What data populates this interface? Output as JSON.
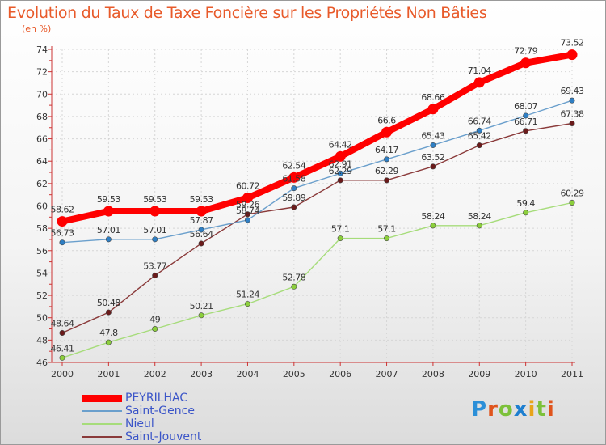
{
  "title": "Evolution du Taux de Taxe Foncière sur les Propriétés Non Bâties",
  "subtitle": "(en %)",
  "brand": {
    "text": "Proxiti",
    "letter_colors": [
      "#2b8fd8",
      "#e0541c",
      "#7cc13a",
      "#1e7fd0",
      "#e8a41a",
      "#7cc13a",
      "#e0541c"
    ]
  },
  "chart_data": {
    "type": "line",
    "title": "Evolution du Taux de Taxe Foncière sur les Propriétés Non Bâties",
    "ylabel": "(en %)",
    "xlabel": "",
    "x": [
      "2000",
      "2001",
      "2002",
      "2003",
      "2004",
      "2005",
      "2006",
      "2007",
      "2008",
      "2009",
      "2010",
      "2011"
    ],
    "ylim": [
      46,
      74
    ],
    "yticks": [
      "46",
      "48",
      "50",
      "52",
      "54",
      "56",
      "58",
      "60",
      "62",
      "64",
      "66",
      "68",
      "70",
      "72",
      "74"
    ],
    "grid": true,
    "legend_position": "bottom-left",
    "series": [
      {
        "name": "PEYRILHAC",
        "color": "#ff0000",
        "values": [
          58.62,
          59.53,
          59.53,
          59.53,
          60.72,
          62.54,
          64.42,
          66.6,
          68.66,
          71.04,
          72.79,
          73.52
        ],
        "labels": [
          "58.62",
          "59.53",
          "59.53",
          "59.53",
          "60.72",
          "62.54",
          "64.42",
          "66.6",
          "68.66",
          "71.04",
          "72.79",
          "73.52"
        ]
      },
      {
        "name": "Saint-Gence",
        "color": "#6a9fcc",
        "marker": "#2f7fc4",
        "values": [
          56.73,
          57.01,
          57.01,
          57.87,
          58.74,
          61.58,
          62.91,
          64.17,
          65.43,
          66.74,
          68.07,
          69.43
        ],
        "labels": [
          "56.73",
          "57.01",
          "57.01",
          "57.87",
          "58.74",
          "61.58",
          "62.91",
          "64.17",
          "65.43",
          "66.74",
          "68.07",
          "69.43"
        ]
      },
      {
        "name": "Nieul",
        "color": "#a6dc7a",
        "marker": "#8ccf3c",
        "values": [
          46.41,
          47.8,
          49,
          50.21,
          51.24,
          52.78,
          57.1,
          57.1,
          58.24,
          58.24,
          59.4,
          60.29
        ],
        "labels": [
          "46.41",
          "47.8",
          "49",
          "50.21",
          "51.24",
          "52.78",
          "57.1",
          "57.1",
          "58.24",
          "58.24",
          "59.4",
          "60.29"
        ]
      },
      {
        "name": "Saint-Jouvent",
        "color": "#8a3a3a",
        "marker": "#6b1a1a",
        "values": [
          48.64,
          50.48,
          53.77,
          56.64,
          59.26,
          59.89,
          62.29,
          62.29,
          63.52,
          65.42,
          66.71,
          67.38
        ],
        "labels": [
          "48.64",
          "50.48",
          "53.77",
          "56.64",
          "59.26",
          "59.89",
          "62.29",
          "62.29",
          "63.52",
          "65.42",
          "66.71",
          "67.38"
        ]
      }
    ]
  }
}
